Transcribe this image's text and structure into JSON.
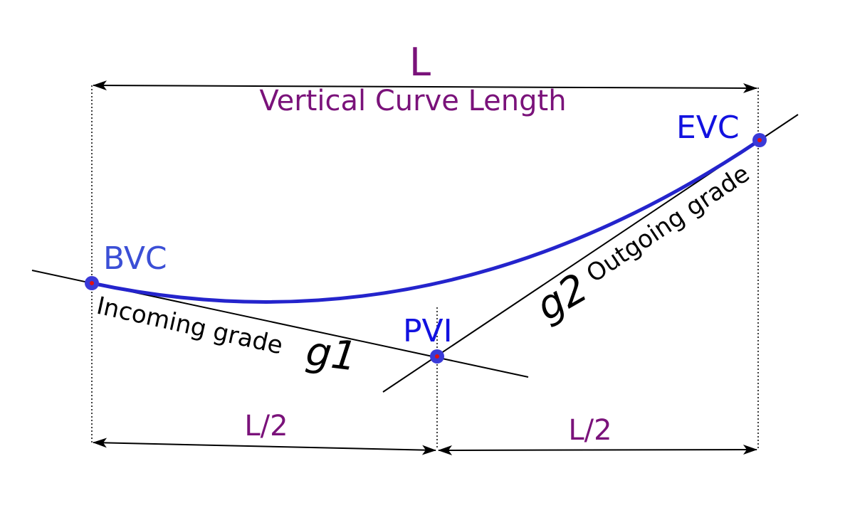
{
  "labels": {
    "length_symbol": "L",
    "length_caption": "Vertical Curve Length",
    "half_length_left": "L/2",
    "half_length_right": "L/2",
    "bvc": "BVC",
    "pvi": "PVI",
    "evc": "EVC",
    "incoming_grade": "Incoming grade",
    "g1": "g1",
    "outgoing_grade": "Outgoing grade",
    "g2": "g2"
  },
  "colors": {
    "curve": "#2424cc",
    "point_fill": "#3a3ad8",
    "point_center": "#e01010",
    "dimension_text": "#7a127a",
    "station_text": "#1212e0",
    "lines": "#000000"
  }
}
